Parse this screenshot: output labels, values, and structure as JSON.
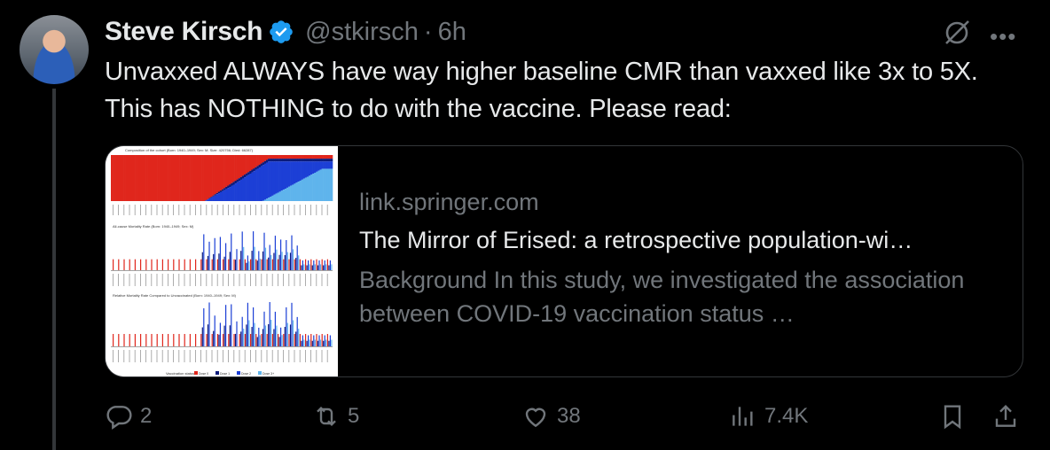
{
  "author": {
    "name": "Steve Kirsch",
    "handle": "@stkirsch",
    "separator": "·",
    "time": "6h"
  },
  "tweet": {
    "text": "Unvaxxed ALWAYS have way higher baseline CMR than vaxxed like 3x to 5X. This has NOTHING to do with the vaccine. Please read:"
  },
  "card": {
    "domain": "link.springer.com",
    "title": "The Mirror of Erised: a retrospective population-wi…",
    "description": "Background In this study, we investigated the association between COVID-19 vaccination status …",
    "thumbnail": {
      "panel1_caption": "Composition of the cohort (Born: 1940–1949; Sex: M; Size: 420756; Died: 66287)",
      "panel2_caption": "All-cause Mortality Rate (Born: 1940–1949; Sex: M)",
      "panel3_caption": "Relative Mortality Rate Compared to Unvaccinated (Born: 1940–1949; Sex: M)",
      "legend_label": "Vaccination status",
      "legend_items": [
        "Dose 0",
        "Dose 1",
        "Dose 2",
        "Dose 3+"
      ],
      "colors": [
        "#e0261c",
        "#0a1a7a",
        "#1c3fd6",
        "#5fb4ec"
      ]
    }
  },
  "actions": {
    "replies": "2",
    "reposts": "5",
    "likes": "38",
    "views": "7.4K"
  },
  "icons": [
    "verified-badge-icon",
    "grok-icon",
    "more-icon",
    "reply-icon",
    "repost-icon",
    "like-icon",
    "views-icon",
    "bookmark-icon",
    "share-icon"
  ],
  "colors": {
    "accent": "#1d9bf0",
    "text": "#e7e9ea",
    "muted": "#71767b",
    "border": "#333639"
  }
}
